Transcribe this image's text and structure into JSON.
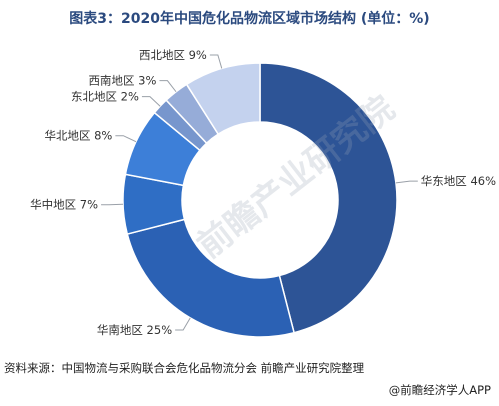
{
  "title": "图表3：2020年中国危化品物流区域市场结构 (单位：%)",
  "source": "资料来源：中国物流与采购联合会危化品物流分会 前瞻产业研究院整理",
  "brand": "@前瞻经济学人APP",
  "watermark": "前瞻产业研究院",
  "chart_data": {
    "type": "pie",
    "donut": true,
    "title": "图表3：2020年中国危化品物流区域市场结构 (单位：%)",
    "slices": [
      {
        "label": "华东地区",
        "value": 46,
        "value_label": "46%",
        "color": "#2d5496"
      },
      {
        "label": "华南地区",
        "value": 25,
        "value_label": "25%",
        "color": "#2b61b4"
      },
      {
        "label": "华中地区",
        "value": 7,
        "value_label": "7%",
        "color": "#2f6ec5"
      },
      {
        "label": "华北地区",
        "value": 8,
        "value_label": "8%",
        "color": "#3d7fd8"
      },
      {
        "label": "东北地区",
        "value": 2,
        "value_label": "2%",
        "color": "#7796cd"
      },
      {
        "label": "西南地区",
        "value": 3,
        "value_label": "3%",
        "color": "#96acd8"
      },
      {
        "label": "西北地区",
        "value": 9,
        "value_label": "9%",
        "color": "#c4d2ee"
      }
    ],
    "start": "12 o'clock",
    "direction": "clockwise"
  }
}
